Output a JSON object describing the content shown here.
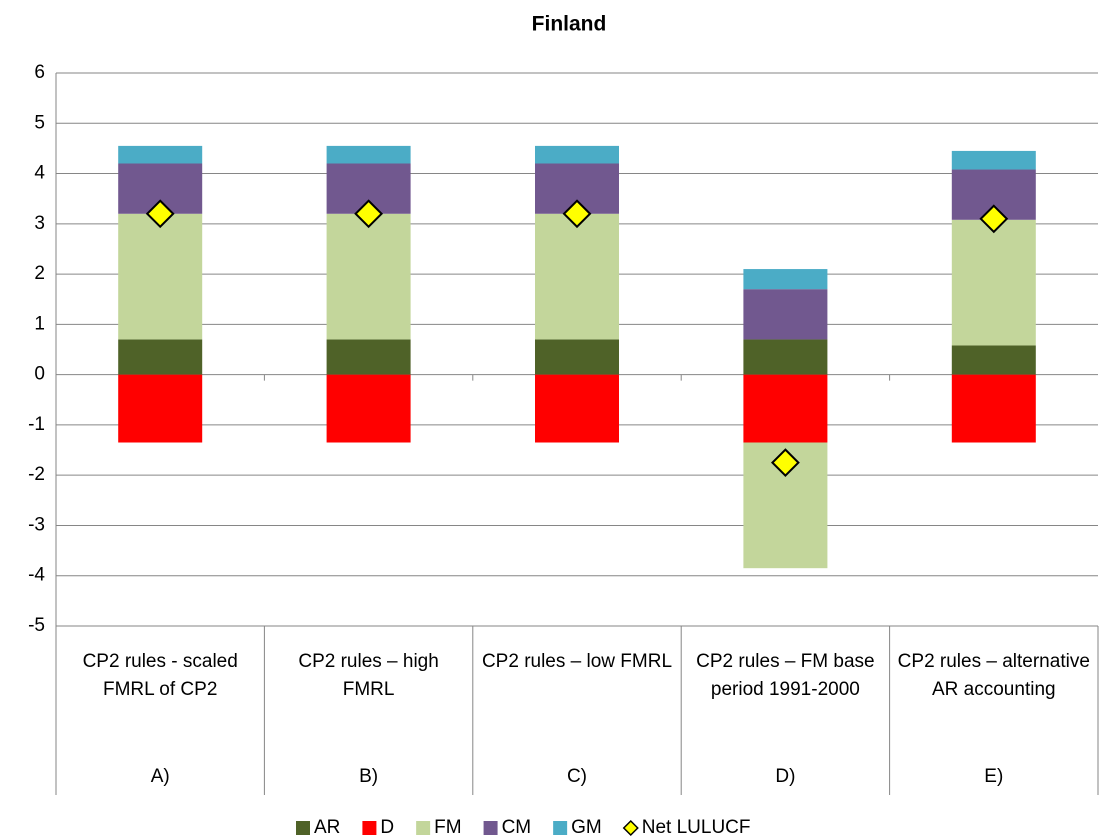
{
  "chart_data": {
    "type": "bar",
    "stacked": true,
    "title": "Finland",
    "categories": [
      "CP2 rules - scaled FMRL of CP2",
      "CP2 rules – high FMRL",
      "CP2 rules – low FMRL",
      "CP2 rules – FM base period 1991-2000",
      "CP2 rules – alternative AR accounting"
    ],
    "groups": [
      "A)",
      "B)",
      "C)",
      "D)",
      "E)"
    ],
    "series": [
      {
        "name": "AR",
        "color": "#4f6228",
        "values": [
          0.7,
          0.7,
          0.7,
          0.7,
          0.58
        ]
      },
      {
        "name": "D",
        "color": "#ff0000",
        "values": [
          -1.35,
          -1.35,
          -1.35,
          -1.35,
          -1.35
        ]
      },
      {
        "name": "FM",
        "color": "#c3d69b",
        "values": [
          2.5,
          2.5,
          2.5,
          -2.5,
          2.5
        ]
      },
      {
        "name": "CM",
        "color": "#71588f",
        "values": [
          1.0,
          1.0,
          1.0,
          1.0,
          1.0
        ]
      },
      {
        "name": "GM",
        "color": "#4bacc6",
        "values": [
          0.35,
          0.35,
          0.35,
          0.4,
          0.37
        ]
      },
      {
        "name": "Net LULUCF",
        "type": "scatter",
        "color": "#ffff00",
        "values": [
          3.2,
          3.2,
          3.2,
          -1.75,
          3.1
        ]
      }
    ],
    "ylim": [
      -5,
      6
    ],
    "yticks": [
      -5,
      -4,
      -3,
      -2,
      -1,
      0,
      1,
      2,
      3,
      4,
      5,
      6
    ],
    "grid": true,
    "legend": "bottom"
  }
}
